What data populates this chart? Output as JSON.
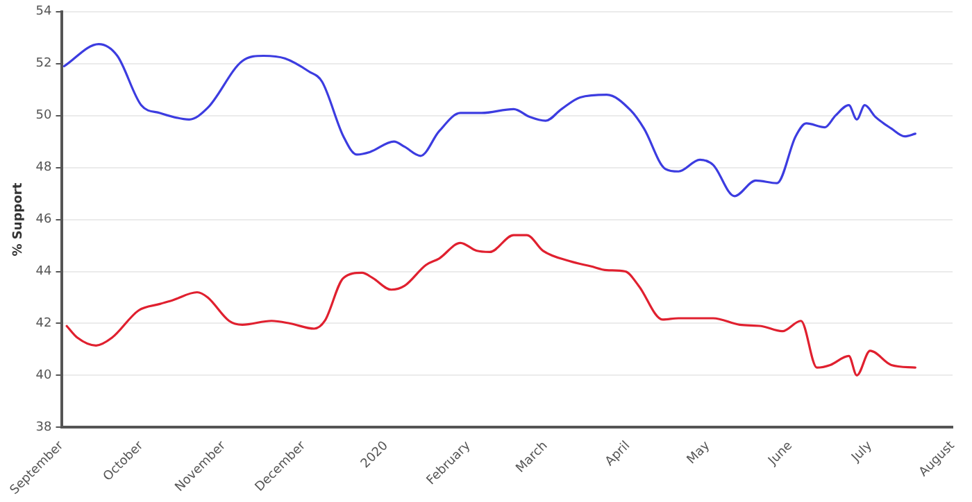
{
  "chart_data": {
    "type": "line",
    "ylabel": "% Support",
    "xlim": [
      "2019-09-01",
      "2020-08-01"
    ],
    "xticks": [
      {
        "value": "2019-09-01",
        "label": "September"
      },
      {
        "value": "2019-10-01",
        "label": "October"
      },
      {
        "value": "2019-11-01",
        "label": "November"
      },
      {
        "value": "2019-12-01",
        "label": "December"
      },
      {
        "value": "2020-01-01",
        "label": "2020"
      },
      {
        "value": "2020-02-01",
        "label": "February"
      },
      {
        "value": "2020-03-01",
        "label": "March"
      },
      {
        "value": "2020-04-01",
        "label": "April"
      },
      {
        "value": "2020-05-01",
        "label": "May"
      },
      {
        "value": "2020-06-01",
        "label": "June"
      },
      {
        "value": "2020-07-01",
        "label": "July"
      },
      {
        "value": "2020-08-01",
        "label": "August"
      }
    ],
    "ylim": [
      38,
      54
    ],
    "yticks": [
      38,
      40,
      42,
      44,
      46,
      48,
      50,
      52,
      54
    ],
    "grid": "y",
    "legend": false,
    "marker": "none",
    "line_style": "solid",
    "series": [
      {
        "color": "#3c3ce0",
        "x": [
          "2019-09-02",
          "2019-09-15",
          "2019-09-22",
          "2019-10-01",
          "2019-10-08",
          "2019-10-19",
          "2019-10-26",
          "2019-11-08",
          "2019-11-16",
          "2019-11-24",
          "2019-12-03",
          "2019-12-08",
          "2019-12-16",
          "2019-12-21",
          "2019-12-26",
          "2020-01-04",
          "2020-01-08",
          "2020-01-14",
          "2020-01-21",
          "2020-01-29",
          "2020-02-06",
          "2020-02-18",
          "2020-02-24",
          "2020-03-01",
          "2020-03-07",
          "2020-03-14",
          "2020-03-24",
          "2020-04-02",
          "2020-04-07",
          "2020-04-15",
          "2020-04-20",
          "2020-04-28",
          "2020-05-03",
          "2020-05-11",
          "2020-05-19",
          "2020-05-27",
          "2020-06-03",
          "2020-06-07",
          "2020-06-14",
          "2020-06-18",
          "2020-06-23",
          "2020-06-26",
          "2020-06-29",
          "2020-07-03",
          "2020-07-09",
          "2020-07-14",
          "2020-07-18"
        ],
        "values": [
          51.9,
          52.75,
          52.3,
          50.4,
          50.1,
          49.85,
          50.3,
          52.1,
          52.3,
          52.2,
          51.7,
          51.3,
          49.2,
          48.5,
          48.6,
          49.0,
          48.8,
          48.45,
          49.4,
          50.1,
          50.1,
          50.25,
          49.95,
          49.8,
          50.25,
          50.7,
          50.8,
          50.2,
          49.5,
          47.95,
          47.85,
          48.3,
          48.1,
          46.9,
          47.5,
          47.4,
          49.2,
          49.7,
          49.55,
          50.0,
          50.4,
          49.85,
          50.4,
          49.95,
          49.5,
          49.2,
          49.3
        ]
      },
      {
        "color": "#e0202f",
        "x": [
          "2019-09-03",
          "2019-09-07",
          "2019-09-14",
          "2019-09-20",
          "2019-09-30",
          "2019-10-08",
          "2019-10-13",
          "2019-10-22",
          "2019-10-26",
          "2019-11-03",
          "2019-11-08",
          "2019-11-19",
          "2019-11-26",
          "2019-12-05",
          "2019-12-09",
          "2019-12-16",
          "2019-12-23",
          "2019-12-27",
          "2020-01-03",
          "2020-01-08",
          "2020-01-16",
          "2020-01-21",
          "2020-01-29",
          "2020-02-04",
          "2020-02-09",
          "2020-02-18",
          "2020-02-23",
          "2020-02-29",
          "2020-03-10",
          "2020-03-18",
          "2020-03-24",
          "2020-03-31",
          "2020-04-05",
          "2020-04-14",
          "2020-04-20",
          "2020-04-25",
          "2020-05-03",
          "2020-05-13",
          "2020-05-21",
          "2020-05-29",
          "2020-06-05",
          "2020-06-11",
          "2020-06-16",
          "2020-06-23",
          "2020-06-26",
          "2020-07-01",
          "2020-07-09",
          "2020-07-18"
        ],
        "values": [
          41.9,
          41.45,
          41.15,
          41.45,
          42.5,
          42.75,
          42.9,
          43.2,
          43.0,
          42.1,
          41.95,
          42.1,
          42.0,
          41.8,
          42.1,
          43.75,
          43.95,
          43.75,
          43.3,
          43.45,
          44.25,
          44.5,
          45.1,
          44.8,
          44.75,
          45.4,
          45.4,
          44.8,
          44.4,
          44.2,
          44.05,
          44.0,
          43.45,
          42.15,
          42.2,
          42.2,
          42.2,
          41.95,
          41.9,
          41.7,
          42.1,
          40.3,
          40.4,
          40.75,
          40.0,
          40.95,
          40.4,
          40.3
        ]
      }
    ]
  }
}
